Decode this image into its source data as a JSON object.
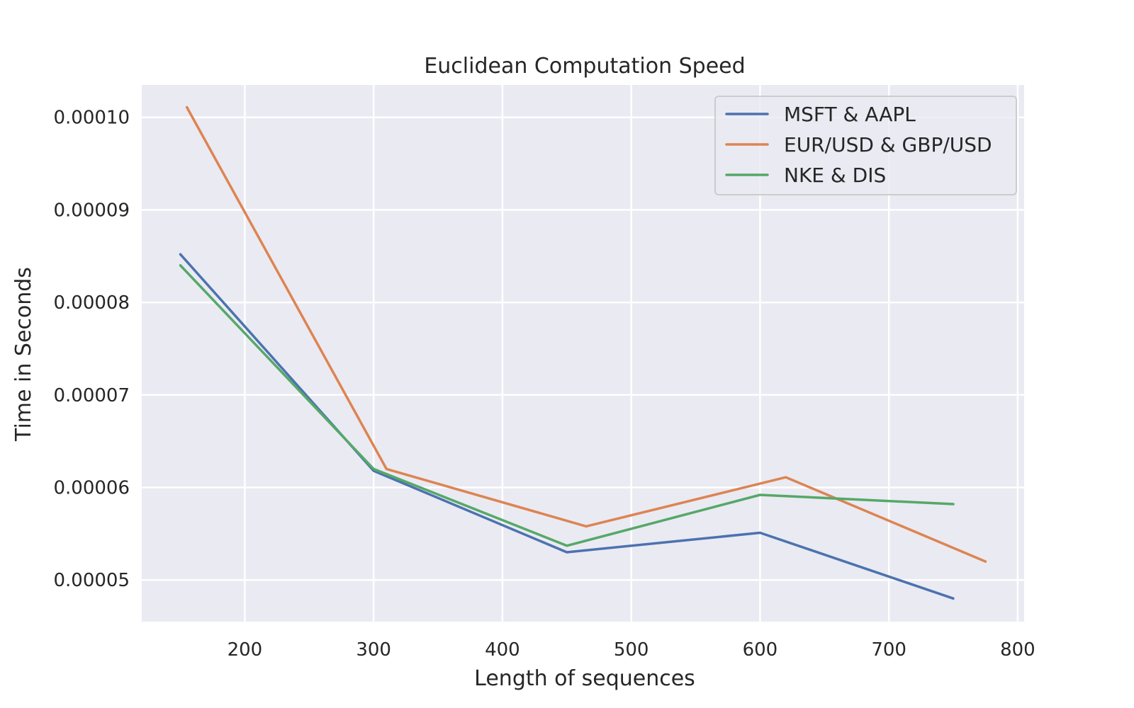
{
  "chart_data": {
    "type": "line",
    "title": "Euclidean Computation Speed",
    "xlabel": "Length of sequences",
    "ylabel": "Time in Seconds",
    "xlim": [
      120,
      805
    ],
    "ylim": [
      4.55e-05,
      0.0001035
    ],
    "xticks": [
      200,
      300,
      400,
      500,
      600,
      700,
      800
    ],
    "yticks": [
      5e-05,
      6e-05,
      7e-05,
      8e-05,
      9e-05,
      0.0001
    ],
    "ytick_labels": [
      "0.00005",
      "0.00006",
      "0.00007",
      "0.00008",
      "0.00009",
      "0.00010"
    ],
    "grid": true,
    "background": "#EAEAF2",
    "legend_position": "top-right",
    "series": [
      {
        "name": "MSFT & AAPL",
        "color": "#4C72B0",
        "points": [
          {
            "x": 150,
            "y": 8.52e-05
          },
          {
            "x": 300,
            "y": 6.18e-05
          },
          {
            "x": 450,
            "y": 5.3e-05
          },
          {
            "x": 600,
            "y": 5.51e-05
          },
          {
            "x": 750,
            "y": 4.8e-05
          }
        ]
      },
      {
        "name": "EUR/USD & GBP/USD",
        "color": "#DD8452",
        "points": [
          {
            "x": 155,
            "y": 0.0001011
          },
          {
            "x": 310,
            "y": 6.2e-05
          },
          {
            "x": 465,
            "y": 5.58e-05
          },
          {
            "x": 620,
            "y": 6.11e-05
          },
          {
            "x": 775,
            "y": 5.2e-05
          }
        ]
      },
      {
        "name": "NKE & DIS",
        "color": "#55A868",
        "points": [
          {
            "x": 150,
            "y": 8.4e-05
          },
          {
            "x": 300,
            "y": 6.2e-05
          },
          {
            "x": 450,
            "y": 5.37e-05
          },
          {
            "x": 600,
            "y": 5.92e-05
          },
          {
            "x": 750,
            "y": 5.82e-05
          }
        ]
      }
    ]
  }
}
